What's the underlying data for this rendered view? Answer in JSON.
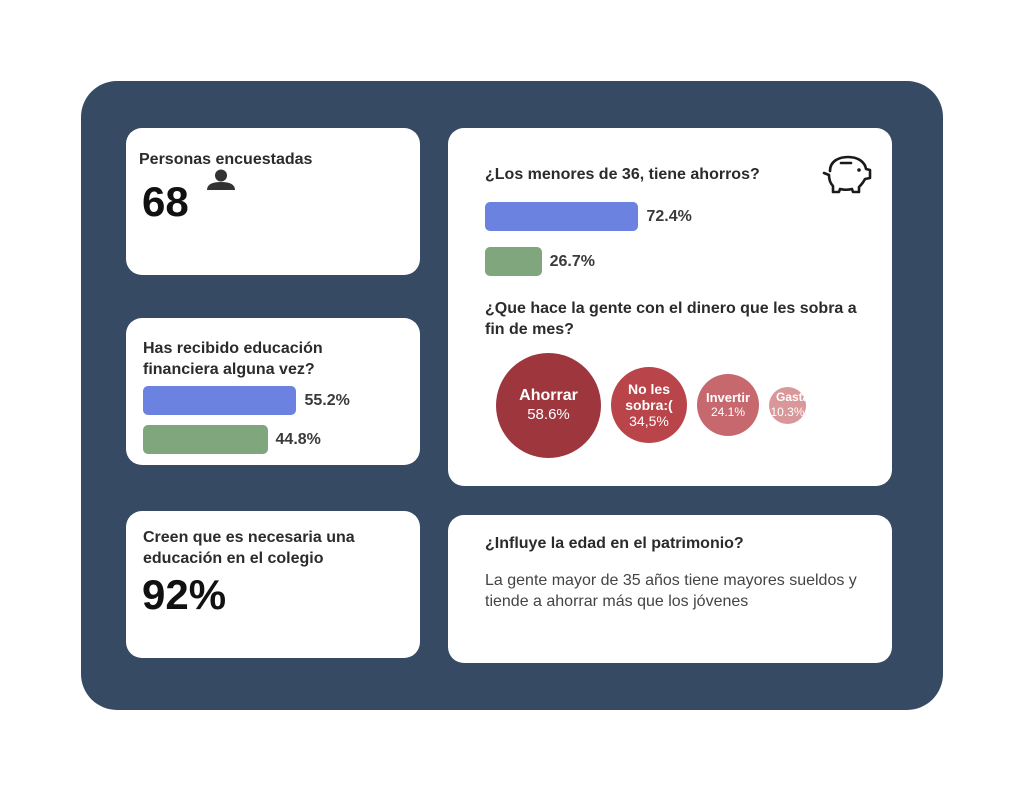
{
  "card_surveyed": {
    "title": "Personas encuestadas",
    "value": "68",
    "icon": "person-icon"
  },
  "card_education": {
    "title": "Has recibido educación financiera alguna vez?"
  },
  "card_school": {
    "title": "Creen que es necesaria una educación en el colegio",
    "value": "92%"
  },
  "card_savings": {
    "title": "¿Los menores de 36, tiene ahorros?",
    "icon": "piggy-bank-icon"
  },
  "card_leftover": {
    "title": "¿Que hace la gente con el dinero que les sobra a fin de mes?"
  },
  "card_age": {
    "title": "¿Influye la edad en el patrimonio?",
    "text": "La gente mayor de 35 años tiene mayores sueldos y tiende a ahorrar más que los jóvenes"
  },
  "colors": {
    "blue": "#6b82e0",
    "green": "#80a67d",
    "background": "#364a63"
  },
  "chart_data": [
    {
      "type": "bar",
      "title": "Has recibido educación financiera alguna vez?",
      "values": [
        55.2,
        44.8
      ],
      "labels": [
        "55.2%",
        "44.8%"
      ],
      "colors": [
        "#6b82e0",
        "#80a67d"
      ]
    },
    {
      "type": "bar",
      "title": "¿Los menores de 36, tiene ahorros?",
      "values": [
        72.4,
        26.7
      ],
      "labels": [
        "72.4%",
        "26.7%"
      ],
      "colors": [
        "#6b82e0",
        "#80a67d"
      ]
    },
    {
      "type": "bubble",
      "title": "¿Que hace la gente con el dinero que les sobra a fin de mes?",
      "categories": [
        "Ahorrar",
        "No les sobra:(",
        "Invertir",
        "Gastar"
      ],
      "values": [
        58.6,
        34.5,
        24.1,
        10.3
      ],
      "labels": [
        "58.6%",
        "34,5%",
        "24.1%",
        "10.3%"
      ],
      "colors": [
        "#9e363d",
        "#b9444a",
        "#c6686e",
        "#d9979a"
      ]
    }
  ]
}
